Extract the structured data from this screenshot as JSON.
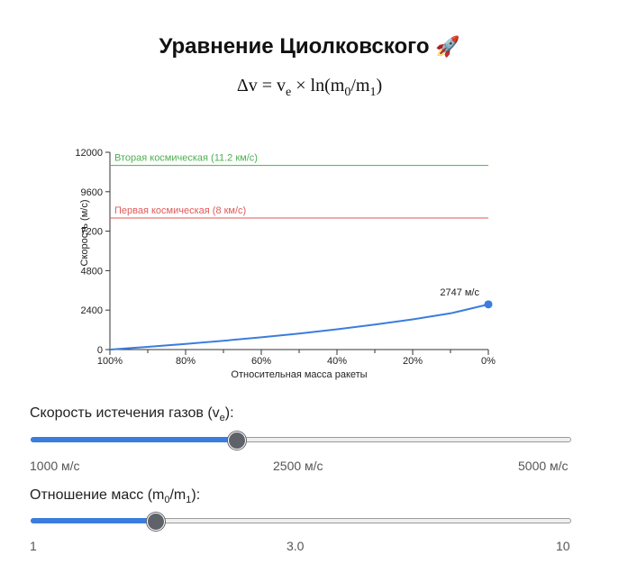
{
  "header": {
    "title": "Уравнение Циолковского",
    "emoji": "🚀",
    "formula_lhs": "Δv = v",
    "formula_sub1": "e",
    "formula_mid": " × ln(m",
    "formula_sub2": "0",
    "formula_mid2": "/m",
    "formula_sub3": "1",
    "formula_end": ")"
  },
  "chart_data": {
    "type": "line",
    "xlabel": "Относительная масса ракеты",
    "ylabel": "Скорость (м/с)",
    "x_tick_labels": [
      "100%",
      "80%",
      "60%",
      "40%",
      "20%",
      "0%"
    ],
    "y_ticks": [
      0,
      2400,
      4800,
      7200,
      9600,
      12000
    ],
    "ylim": [
      0,
      12000
    ],
    "xlim": [
      0,
      1
    ],
    "series": [
      {
        "color": "#3b7ddd",
        "x": [
          0,
          0.1,
          0.2,
          0.3,
          0.4,
          0.5,
          0.6,
          0.7,
          0.8,
          0.9,
          1.0
        ],
        "y": [
          0,
          165,
          343,
          536,
          746,
          977,
          1232,
          1516,
          1837,
          2205,
          2747
        ]
      }
    ],
    "end_point": {
      "x": 1.0,
      "y": 2747,
      "label": "2747 м/с"
    },
    "reference_lines": [
      {
        "value": 11200,
        "label": "Вторая космическая (11.2 км/с)",
        "color": "#4caf50"
      },
      {
        "value": 8000,
        "label": "Первая космическая (8 км/с)",
        "color": "#e05a5a"
      }
    ],
    "grid": false
  },
  "controls": {
    "exhaust": {
      "label_pre": "Скорость истечения газов (v",
      "label_sub": "e",
      "label_post": "):",
      "value_fraction": 0.38,
      "min_label": "1000 м/с",
      "mid_label": "2500 м/с",
      "max_label": "5000 м/с"
    },
    "mass_ratio": {
      "label_pre": "Отношение масс (m",
      "label_sub1": "0",
      "label_mid": "/m",
      "label_sub2": "1",
      "label_post": "):",
      "value_fraction": 0.23,
      "min_label": "1",
      "mid_label": "3.0",
      "max_label": "10"
    }
  }
}
